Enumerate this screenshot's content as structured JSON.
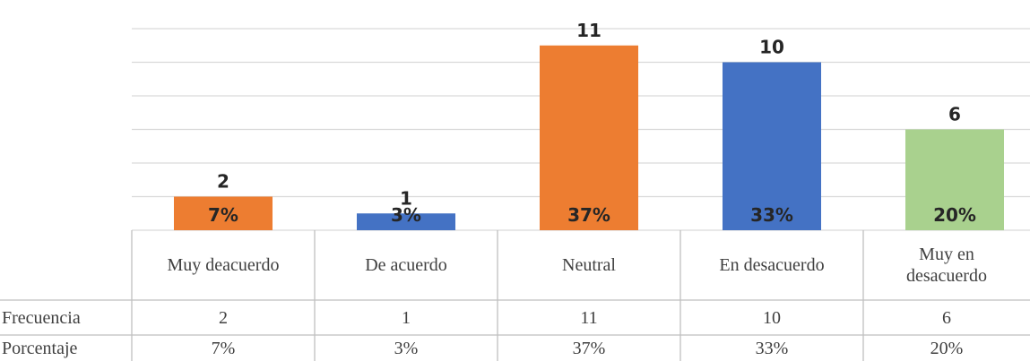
{
  "chart_data": {
    "type": "bar",
    "categories": [
      "Muy deacuerdo",
      "De acuerdo",
      "Neutral",
      "En desacuerdo",
      "Muy en desacuerdo"
    ],
    "series": [
      {
        "name": "Frecuencia",
        "values": [
          2,
          1,
          11,
          10,
          6
        ],
        "colors": [
          "#ed7d31",
          "#4472c4",
          "#ed7d31",
          "#4472c4",
          "#a9d18e"
        ]
      },
      {
        "name": "Porcentaje",
        "values": [
          7,
          3,
          37,
          33,
          20
        ],
        "value_labels": [
          "7%",
          "3%",
          "37%",
          "33%",
          "20%"
        ]
      }
    ],
    "ylim": [
      0,
      12
    ],
    "yticks": [
      0,
      2,
      4,
      6,
      8,
      10,
      12
    ],
    "grid": true
  }
}
